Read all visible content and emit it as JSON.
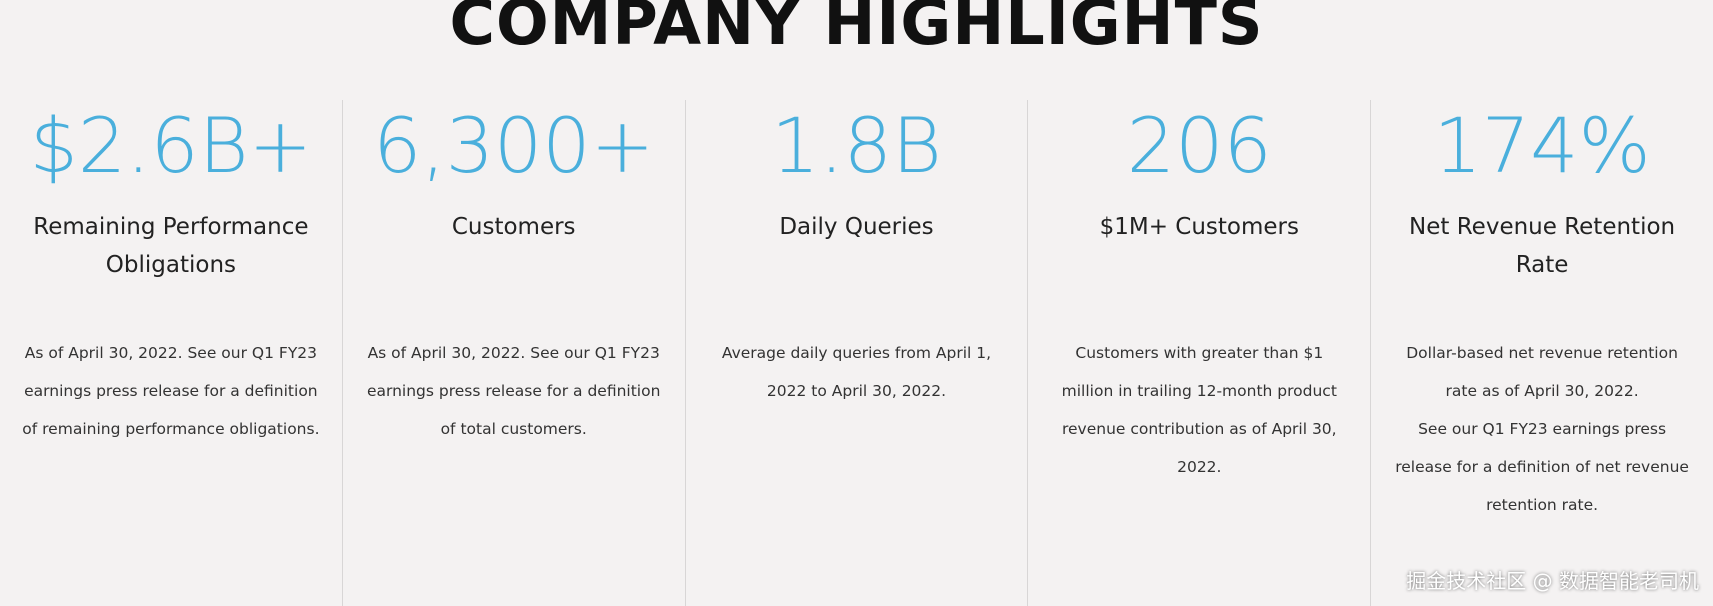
{
  "header": {
    "title": "COMPANY HIGHLIGHTS"
  },
  "highlights": [
    {
      "stat": "$2.6B+",
      "label": "Remaining Performance Obligations",
      "description": [
        "As of April 30, 2022. See our Q1 FY23 earnings press release for a definition of remaining performance obligations."
      ]
    },
    {
      "stat": "6,300+",
      "label": "Customers",
      "description": [
        "As of April 30, 2022. See our Q1 FY23 earnings press release for a definition of total customers."
      ]
    },
    {
      "stat": "1.8B",
      "label": "Daily Queries",
      "description": [
        "Average daily queries from April 1, 2022 to April 30, 2022."
      ]
    },
    {
      "stat": "206",
      "label": "$1M+ Customers",
      "description": [
        "Customers with greater than $1 million in trailing 12-month product revenue contribution as of April 30, 2022."
      ]
    },
    {
      "stat": "174%",
      "label": "Net Revenue Retention Rate",
      "description": [
        "Dollar-based net revenue retention rate as of April 30, 2022.",
        "See our Q1 FY23 earnings press release for a definition of net revenue retention rate."
      ]
    }
  ],
  "watermark": "掘金技术社区 @ 数据智能老司机"
}
